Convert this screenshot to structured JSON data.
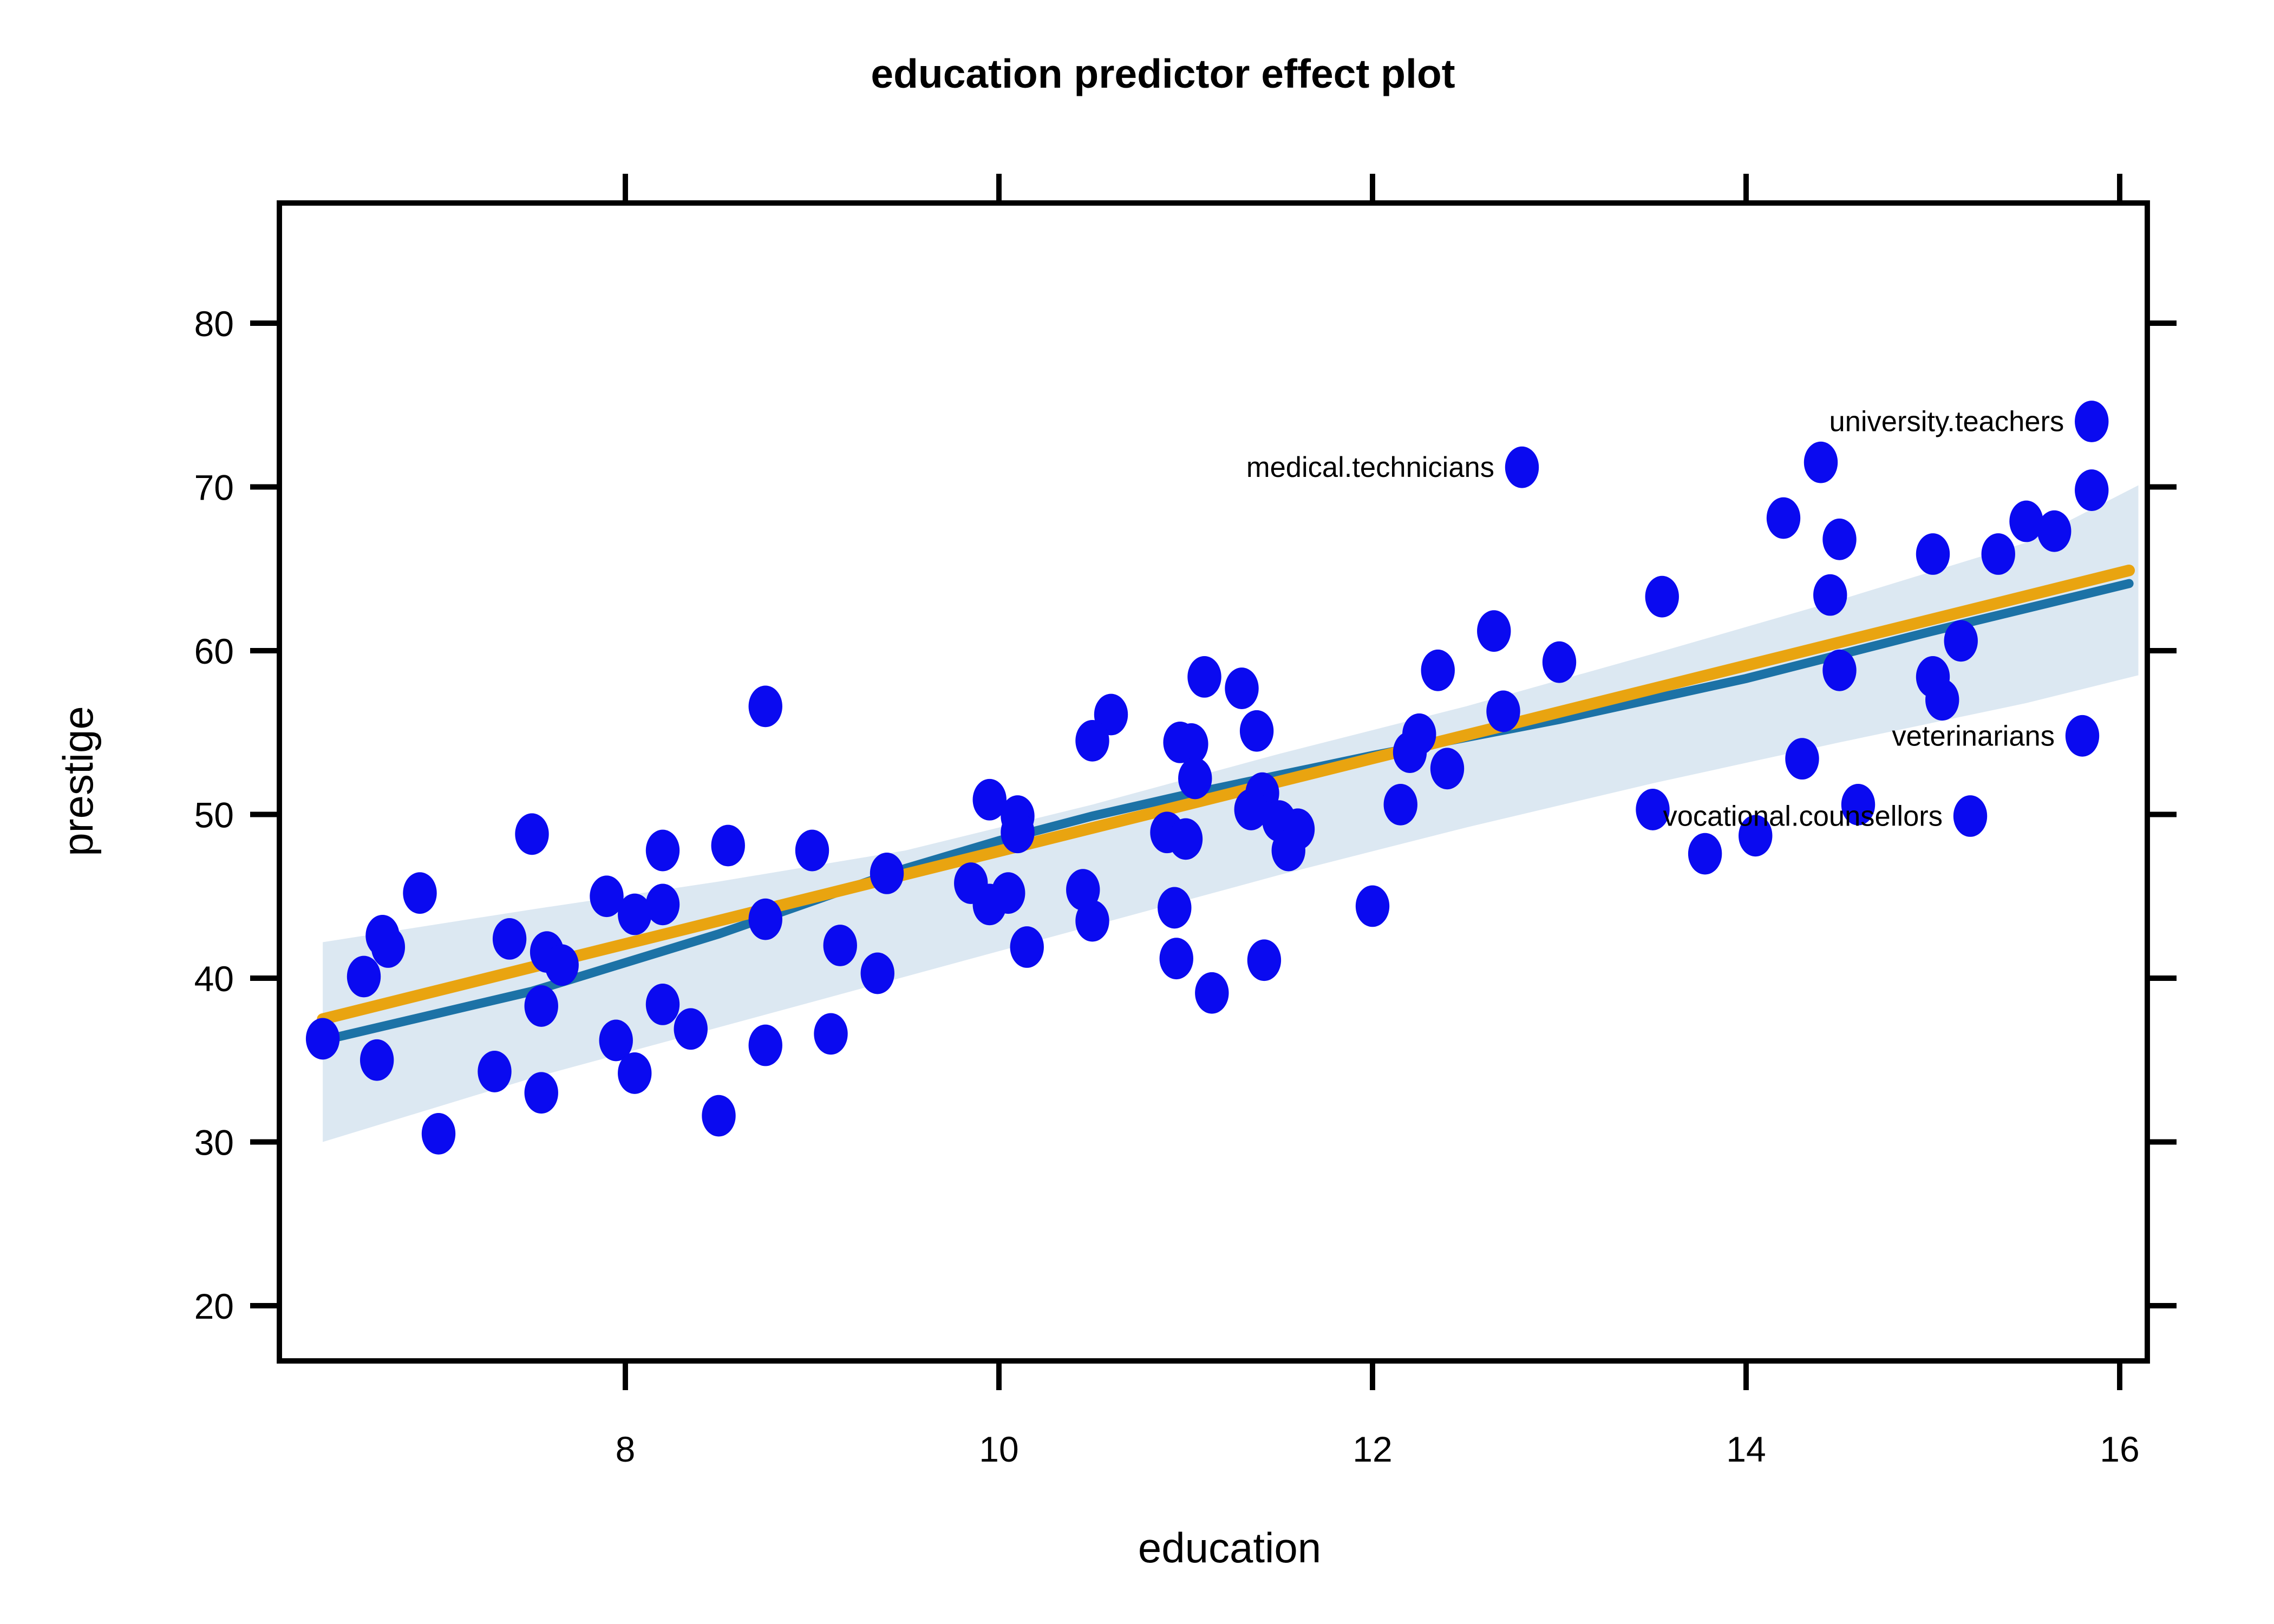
{
  "title": "education predictor effect plot",
  "x_axis": {
    "label": "education",
    "ticks": [
      8,
      10,
      12,
      14,
      16
    ],
    "range": [
      6.14,
      16.15
    ]
  },
  "y_axis": {
    "label": "prestige",
    "ticks": [
      20,
      30,
      40,
      50,
      60,
      70,
      80
    ],
    "range": [
      16.6,
      87.3
    ]
  },
  "colors": {
    "point": "#0a0af0",
    "fit_line": "#e9a410",
    "smooth_line": "#1c72a6",
    "band": "#dce8f2",
    "axis": "#000000",
    "text": "#000000",
    "background": "#ffffff"
  },
  "chart_data": {
    "type": "scatter",
    "title": "education predictor effect plot",
    "xlabel": "education",
    "ylabel": "prestige",
    "xlim": [
      6.14,
      16.15
    ],
    "ylim": [
      16.6,
      87.3
    ],
    "x_ticks": [
      8,
      10,
      12,
      14,
      16
    ],
    "y_ticks": [
      20,
      30,
      40,
      50,
      60,
      70,
      80
    ],
    "grid": false,
    "legend": false,
    "points": [
      [
        6.38,
        36.3
      ],
      [
        6.6,
        40.1
      ],
      [
        6.7,
        42.6
      ],
      [
        6.73,
        41.9
      ],
      [
        6.67,
        35.0
      ],
      [
        6.9,
        45.2
      ],
      [
        7.0,
        30.5
      ],
      [
        7.3,
        34.3
      ],
      [
        7.55,
        33.0
      ],
      [
        7.38,
        42.4
      ],
      [
        7.5,
        48.8
      ],
      [
        7.58,
        41.6
      ],
      [
        7.66,
        40.8
      ],
      [
        7.55,
        38.3
      ],
      [
        7.9,
        45.0
      ],
      [
        7.95,
        36.2
      ],
      [
        8.2,
        47.8
      ],
      [
        8.55,
        48.1
      ],
      [
        8.2,
        44.5
      ],
      [
        8.05,
        43.9
      ],
      [
        8.75,
        43.6
      ],
      [
        8.2,
        38.4
      ],
      [
        8.05,
        34.2
      ],
      [
        8.5,
        31.6
      ],
      [
        8.35,
        36.9
      ],
      [
        8.75,
        35.9
      ],
      [
        9.1,
        36.6
      ],
      [
        8.75,
        56.6
      ],
      [
        9.0,
        47.8
      ],
      [
        9.4,
        46.4
      ],
      [
        9.15,
        42.0
      ],
      [
        9.35,
        40.3
      ],
      [
        9.95,
        50.9
      ],
      [
        10.1,
        49.9
      ],
      [
        10.1,
        48.9
      ],
      [
        9.85,
        45.8
      ],
      [
        10.05,
        45.2
      ],
      [
        9.95,
        44.5
      ],
      [
        10.45,
        45.4
      ],
      [
        10.5,
        43.5
      ],
      [
        10.15,
        41.9
      ],
      [
        10.94,
        44.3
      ],
      [
        10.95,
        41.2
      ],
      [
        11.14,
        39.1
      ],
      [
        11.42,
        41.1
      ],
      [
        10.6,
        56.1
      ],
      [
        10.5,
        54.5
      ],
      [
        10.97,
        54.4
      ],
      [
        11.03,
        54.3
      ],
      [
        11.05,
        52.2
      ],
      [
        11.1,
        58.4
      ],
      [
        11.3,
        57.7
      ],
      [
        11.38,
        55.1
      ],
      [
        11.41,
        51.3
      ],
      [
        11.35,
        50.3
      ],
      [
        11.5,
        49.6
      ],
      [
        11.6,
        49.1
      ],
      [
        11.55,
        47.8
      ],
      [
        10.9,
        48.9
      ],
      [
        11.0,
        48.5
      ],
      [
        12.0,
        44.4
      ],
      [
        12.65,
        61.2
      ],
      [
        12.35,
        58.8
      ],
      [
        13.0,
        59.3
      ],
      [
        12.7,
        56.3
      ],
      [
        12.25,
        54.9
      ],
      [
        12.2,
        53.8
      ],
      [
        12.4,
        52.8
      ],
      [
        12.15,
        50.6
      ],
      [
        13.55,
        63.3
      ],
      [
        13.5,
        50.3
      ],
      [
        13.78,
        47.6
      ],
      [
        14.05,
        48.7
      ],
      [
        14.45,
        63.4
      ],
      [
        14.2,
        68.1
      ],
      [
        14.5,
        66.8
      ],
      [
        14.4,
        71.5
      ],
      [
        15.15,
        60.6
      ],
      [
        14.5,
        58.8
      ],
      [
        15.05,
        57.0
      ],
      [
        15.0,
        58.4
      ],
      [
        14.3,
        53.4
      ],
      [
        14.6,
        50.6
      ],
      [
        15.0,
        65.9
      ],
      [
        15.35,
        65.9
      ],
      [
        15.5,
        67.9
      ],
      [
        15.65,
        67.3
      ],
      [
        15.85,
        69.8
      ]
    ],
    "labeled_points": [
      {
        "label": "medical.technicians",
        "x": 12.8,
        "y": 71.2
      },
      {
        "label": "university.teachers",
        "x": 15.85,
        "y": 74.0
      },
      {
        "label": "veterinarians",
        "x": 15.8,
        "y": 54.8
      },
      {
        "label": "vocational.counsellors",
        "x": 15.2,
        "y": 49.9
      }
    ],
    "series": [
      {
        "name": "linear fit",
        "color": "#e9a410",
        "values": [
          [
            6.38,
            37.5
          ],
          [
            16.05,
            64.9
          ]
        ]
      },
      {
        "name": "smooth fit",
        "color": "#1c72a6",
        "values": [
          [
            6.38,
            36.2
          ],
          [
            7.5,
            39.2
          ],
          [
            8.5,
            42.7
          ],
          [
            9.5,
            46.7
          ],
          [
            10,
            48.4
          ],
          [
            10.5,
            49.9
          ],
          [
            11,
            51.2
          ],
          [
            11.5,
            52.4
          ],
          [
            12,
            53.6
          ],
          [
            13,
            55.8
          ],
          [
            14,
            58.3
          ],
          [
            15,
            61.2
          ],
          [
            16.05,
            64.1
          ]
        ]
      }
    ],
    "confidence_band": {
      "upper": [
        [
          6.38,
          42.2
        ],
        [
          7.5,
          44.2
        ],
        [
          8.5,
          45.9
        ],
        [
          9.5,
          47.8
        ],
        [
          10.5,
          50.6
        ],
        [
          11.5,
          53.7
        ],
        [
          12.5,
          56.6
        ],
        [
          13.5,
          59.8
        ],
        [
          14.5,
          63.1
        ],
        [
          15.5,
          66.6
        ],
        [
          16.1,
          70.1
        ]
      ],
      "lower": [
        [
          6.38,
          30.0
        ],
        [
          7.5,
          33.9
        ],
        [
          8.5,
          37.0
        ],
        [
          9.5,
          40.1
        ],
        [
          10.5,
          43.2
        ],
        [
          11.5,
          46.3
        ],
        [
          12.5,
          49.2
        ],
        [
          13.5,
          51.9
        ],
        [
          14.5,
          54.4
        ],
        [
          15.5,
          56.8
        ],
        [
          16.1,
          58.5
        ]
      ]
    }
  }
}
